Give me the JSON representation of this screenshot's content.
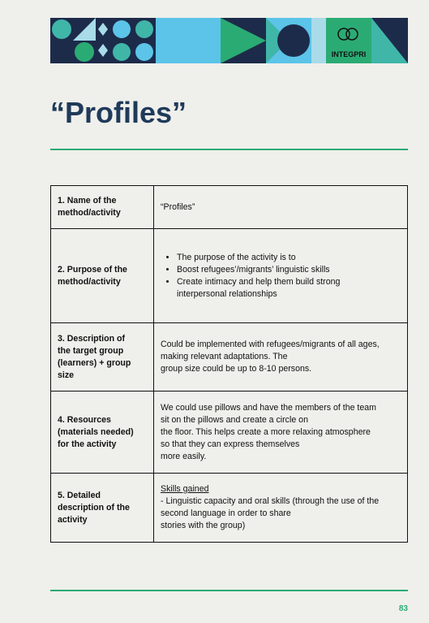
{
  "header": {
    "logo": "INTEGPRI"
  },
  "title": "“Profiles”",
  "table": {
    "rows": [
      {
        "label": [
          "1. Name of the",
          "method/activity"
        ],
        "content": [
          "“Profiles”"
        ]
      },
      {
        "label": [
          "2. Purpose of the",
          "method/activity"
        ],
        "bullets": [
          "The purpose of the activity is to",
          "Boost refugees’/migrants’ linguistic skills",
          "Create intimacy and help them build strong interpersonal relationships"
        ]
      },
      {
        "label": [
          "3. Description of",
          "the target group",
          "(learners) + group",
          "size"
        ],
        "content": [
          "Could be implemented with refugees/migrants of all ages,",
          "making relevant adaptations. The",
          "group size could be up to 8-10 persons."
        ]
      },
      {
        "label": [
          "4. Resources",
          "(materials needed)",
          "for the activity"
        ],
        "content": [
          "We could use pillows and have the members of the team",
          "sit on the pillows and create a circle on",
          "the floor. This helps create a more relaxing atmosphere",
          "so that they can express themselves",
          "more easily."
        ]
      },
      {
        "label": [
          "5. Detailed",
          "description of the",
          "activity"
        ],
        "heading": "Skills gained",
        "content": [
          "- Linguistic capacity and oral skills (through the use of the",
          "second language in order to share",
          "stories with the group)"
        ]
      }
    ]
  },
  "footer": {
    "page_number": "83"
  }
}
